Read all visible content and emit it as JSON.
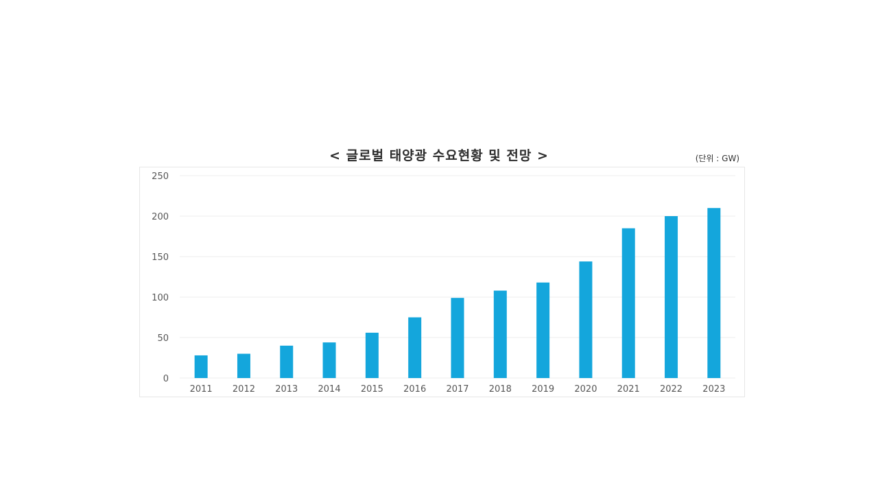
{
  "chart_data": {
    "type": "bar",
    "title": "< 글로벌 태양광 수요현황 및 전망 >",
    "unit": "(단위 : GW)",
    "xlabel": "",
    "ylabel": "",
    "categories": [
      "2011",
      "2012",
      "2013",
      "2014",
      "2015",
      "2016",
      "2017",
      "2018",
      "2019",
      "2020",
      "2021",
      "2022",
      "2023"
    ],
    "values": [
      28,
      30,
      40,
      44,
      56,
      75,
      99,
      108,
      118,
      144,
      185,
      200,
      210
    ],
    "ylim": [
      0,
      250
    ],
    "yticks": [
      "0",
      "50",
      "100",
      "150",
      "200",
      "250"
    ],
    "grid": true,
    "bar_color": "#14a6dc"
  }
}
